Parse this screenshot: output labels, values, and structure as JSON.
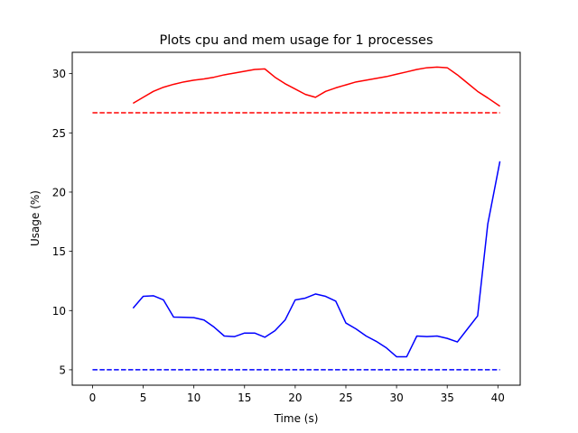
{
  "chart_data": {
    "type": "line",
    "title": "Plots cpu and mem usage for 1 processes",
    "xlabel": "Time (s)",
    "ylabel": "Usage (%)",
    "xlim": [
      -2.0,
      42.2
    ],
    "ylim": [
      3.7,
      31.8
    ],
    "xticks": [
      0,
      5,
      10,
      15,
      20,
      25,
      30,
      35,
      40
    ],
    "yticks": [
      5,
      10,
      15,
      20,
      25,
      30
    ],
    "grid": false,
    "legend": "none",
    "series": [
      {
        "color": "#ff0000",
        "style": "solid",
        "x": [
          4,
          5,
          6,
          7,
          8,
          9,
          10,
          11,
          12,
          13,
          14,
          15,
          16,
          17,
          18,
          19,
          20,
          21,
          22,
          23,
          24,
          25,
          26,
          27,
          28,
          29,
          30,
          31,
          32,
          33,
          34,
          35,
          36,
          37,
          38,
          39,
          40.2
        ],
        "y": [
          27.5,
          28.0,
          28.5,
          28.85,
          29.1,
          29.3,
          29.45,
          29.55,
          29.7,
          29.9,
          30.05,
          30.2,
          30.35,
          30.4,
          29.7,
          29.15,
          28.7,
          28.25,
          28.0,
          28.5,
          28.8,
          29.05,
          29.3,
          29.45,
          29.6,
          29.75,
          29.95,
          30.15,
          30.35,
          30.5,
          30.55,
          30.5,
          29.9,
          29.2,
          28.5,
          27.95,
          27.25
        ]
      },
      {
        "color": "#ff0000",
        "style": "dashed",
        "x": [
          0,
          40.2
        ],
        "y": [
          26.7,
          26.7
        ]
      },
      {
        "color": "#0000ff",
        "style": "solid",
        "x": [
          4,
          5,
          6,
          7,
          8,
          9,
          10,
          11,
          12,
          13,
          14,
          15,
          16,
          17,
          18,
          19,
          20,
          21,
          22,
          23,
          24,
          25,
          26,
          27,
          28,
          29,
          30,
          31,
          32,
          33,
          34,
          35,
          36,
          37,
          38,
          39,
          40.2
        ],
        "y": [
          10.2,
          11.2,
          11.25,
          10.9,
          9.45,
          9.43,
          9.4,
          9.2,
          8.6,
          7.85,
          7.8,
          8.1,
          8.1,
          7.75,
          8.3,
          9.2,
          10.9,
          11.05,
          11.4,
          11.2,
          10.8,
          8.95,
          8.45,
          7.85,
          7.4,
          6.85,
          6.1,
          6.1,
          7.85,
          7.8,
          7.85,
          7.65,
          7.35,
          8.45,
          9.55,
          17.3,
          22.6
        ]
      },
      {
        "color": "#0000ff",
        "style": "dashed",
        "x": [
          0,
          40.2
        ],
        "y": [
          5.0,
          5.0
        ]
      }
    ]
  }
}
